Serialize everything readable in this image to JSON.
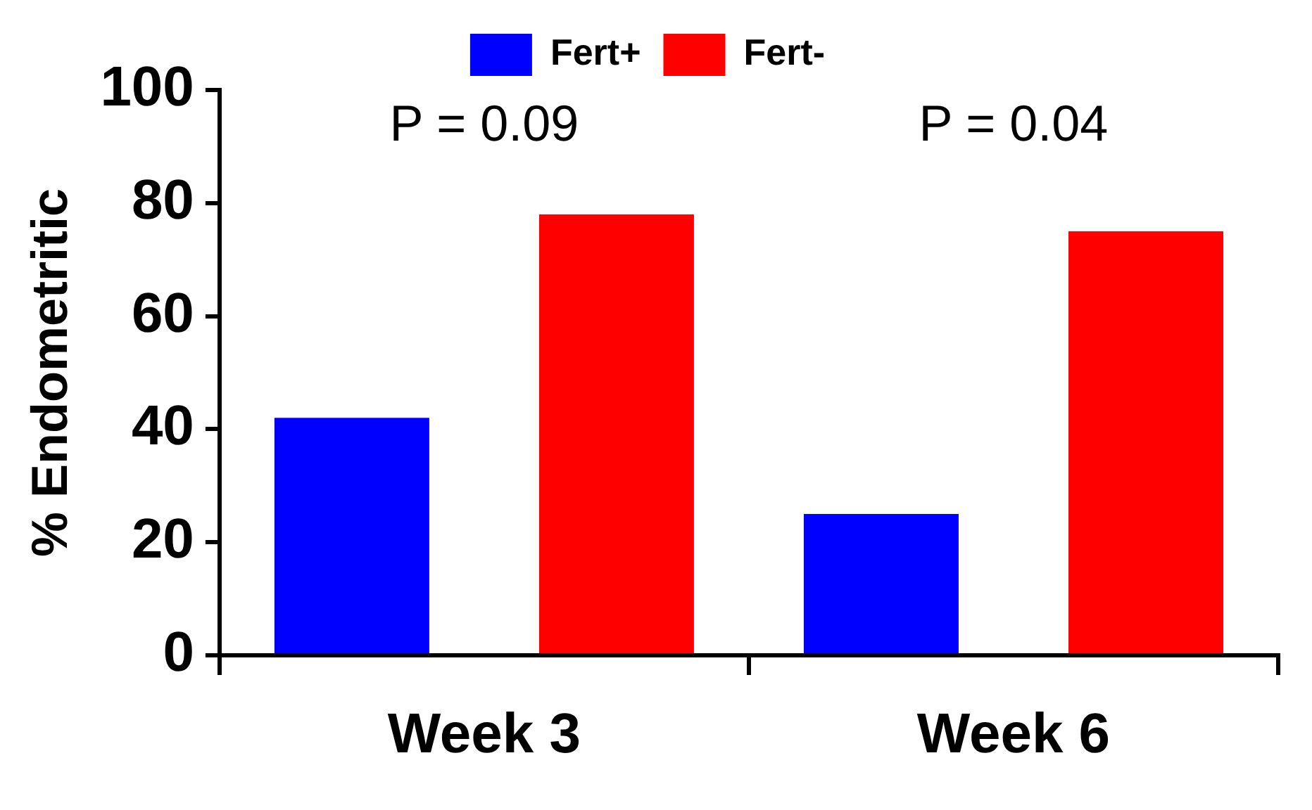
{
  "chart_data": {
    "type": "bar",
    "ylabel": "% Endometritic",
    "categories": [
      "Week 3",
      "Week 6"
    ],
    "series": [
      {
        "name": "Fert+",
        "color": "#0000ff",
        "values": [
          42,
          25
        ]
      },
      {
        "name": "Fert-",
        "color": "#ff0000",
        "values": [
          78,
          75
        ]
      }
    ],
    "ylim": [
      0,
      100
    ],
    "yticks": [
      0,
      20,
      40,
      60,
      80,
      100
    ],
    "grid": false,
    "legend": "top",
    "annotations": [
      "P = 0.09",
      "P = 0.04"
    ]
  }
}
